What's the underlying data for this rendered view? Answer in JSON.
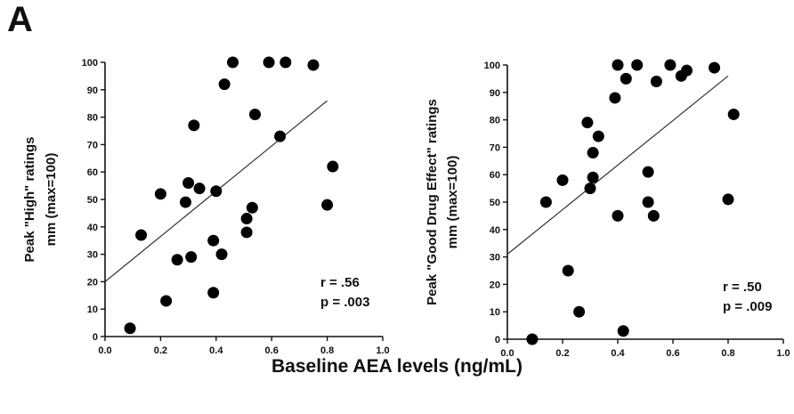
{
  "figure": {
    "panel_label": "A",
    "shared_xlabel": "Baseline AEA levels (ng/mL)"
  },
  "chart_data": [
    {
      "type": "scatter",
      "title": "",
      "xlabel": "",
      "ylabel_line1": "Peak \"High\" ratings",
      "ylabel_line2": "mm (max=100)",
      "xlim": [
        0.0,
        1.0
      ],
      "ylim": [
        0,
        100
      ],
      "xticks": [
        0.0,
        0.2,
        0.4,
        0.6,
        0.8,
        1.0
      ],
      "xtick_labels": [
        "0.0",
        "0.2",
        "0.4",
        "0.6",
        "0.8",
        "1.0"
      ],
      "yticks": [
        0,
        10,
        20,
        30,
        40,
        50,
        60,
        70,
        80,
        90,
        100
      ],
      "ytick_labels": [
        "0",
        "10",
        "20",
        "30",
        "40",
        "50",
        "60",
        "70",
        "80",
        "90",
        "100"
      ],
      "points": [
        [
          0.09,
          3
        ],
        [
          0.13,
          37
        ],
        [
          0.2,
          52
        ],
        [
          0.22,
          13
        ],
        [
          0.26,
          28
        ],
        [
          0.29,
          49
        ],
        [
          0.3,
          56
        ],
        [
          0.31,
          29
        ],
        [
          0.32,
          77
        ],
        [
          0.34,
          54
        ],
        [
          0.39,
          35
        ],
        [
          0.39,
          16
        ],
        [
          0.4,
          53
        ],
        [
          0.42,
          30
        ],
        [
          0.43,
          92
        ],
        [
          0.46,
          100
        ],
        [
          0.51,
          43
        ],
        [
          0.51,
          38
        ],
        [
          0.53,
          47
        ],
        [
          0.54,
          81
        ],
        [
          0.59,
          100
        ],
        [
          0.63,
          73
        ],
        [
          0.65,
          100
        ],
        [
          0.75,
          99
        ],
        [
          0.8,
          48
        ],
        [
          0.82,
          62
        ]
      ],
      "regression_line": [
        [
          0.0,
          20
        ],
        [
          0.8,
          86
        ]
      ],
      "stats_line1": "r = .56",
      "stats_line2": "p = .003"
    },
    {
      "type": "scatter",
      "title": "",
      "xlabel": "",
      "ylabel_line1": "Peak \"Good Drug Effect\" ratings",
      "ylabel_line2": "mm (max=100)",
      "xlim": [
        0.0,
        1.0
      ],
      "ylim": [
        0,
        100
      ],
      "xticks": [
        0.0,
        0.2,
        0.4,
        0.6,
        0.8,
        1.0
      ],
      "xtick_labels": [
        "0.0",
        "0.2",
        "0.4",
        "0.6",
        "0.8",
        "1.0"
      ],
      "yticks": [
        0,
        10,
        20,
        30,
        40,
        50,
        60,
        70,
        80,
        90,
        100
      ],
      "ytick_labels": [
        "0",
        "10",
        "20",
        "30",
        "40",
        "50",
        "60",
        "70",
        "80",
        "90",
        "100"
      ],
      "points": [
        [
          0.09,
          0
        ],
        [
          0.14,
          50
        ],
        [
          0.2,
          58
        ],
        [
          0.22,
          25
        ],
        [
          0.26,
          10
        ],
        [
          0.29,
          79
        ],
        [
          0.3,
          55
        ],
        [
          0.31,
          59
        ],
        [
          0.31,
          68
        ],
        [
          0.33,
          74
        ],
        [
          0.39,
          88
        ],
        [
          0.4,
          100
        ],
        [
          0.4,
          45
        ],
        [
          0.42,
          3
        ],
        [
          0.43,
          95
        ],
        [
          0.47,
          100
        ],
        [
          0.51,
          61
        ],
        [
          0.51,
          50
        ],
        [
          0.53,
          45
        ],
        [
          0.54,
          94
        ],
        [
          0.59,
          100
        ],
        [
          0.63,
          96
        ],
        [
          0.65,
          98
        ],
        [
          0.75,
          99
        ],
        [
          0.8,
          51
        ],
        [
          0.82,
          82
        ]
      ],
      "regression_line": [
        [
          0.0,
          31
        ],
        [
          0.8,
          96
        ]
      ],
      "stats_line1": "r = .50",
      "stats_line2": "p = .009"
    }
  ]
}
